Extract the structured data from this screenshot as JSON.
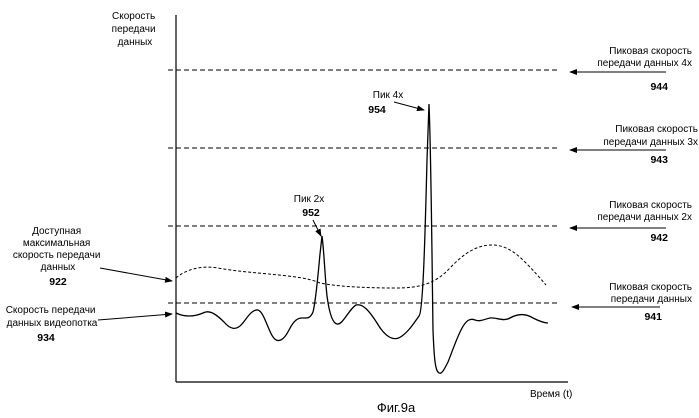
{
  "axes": {
    "y_label": [
      "Скорость",
      "передачи",
      "данных"
    ],
    "x_label": "Время (t)"
  },
  "levels": [
    {
      "text": [
        "Пиковая скорость",
        "передачи данных 4х"
      ],
      "ref": "944"
    },
    {
      "text": [
        "Пиковая скорость",
        "передачи данных 3х"
      ],
      "ref": "943"
    },
    {
      "text": [
        "Пиковая скорость",
        "передачи данных 2х"
      ],
      "ref": "942"
    },
    {
      "text": [
        "Пиковая скорость",
        "передачи данных"
      ],
      "ref": "941"
    }
  ],
  "available": {
    "text": [
      "Доступная",
      "максимальная",
      "скорость передачи",
      "данных"
    ],
    "ref": "922"
  },
  "stream": {
    "text": [
      "Скорость передачи",
      "данных видеопотка"
    ],
    "ref": "934"
  },
  "peaks": [
    {
      "label": "Пик 2х",
      "ref": "952"
    },
    {
      "label": "Пик 4х",
      "ref": "954"
    }
  ],
  "caption": "Фиг.9а"
}
